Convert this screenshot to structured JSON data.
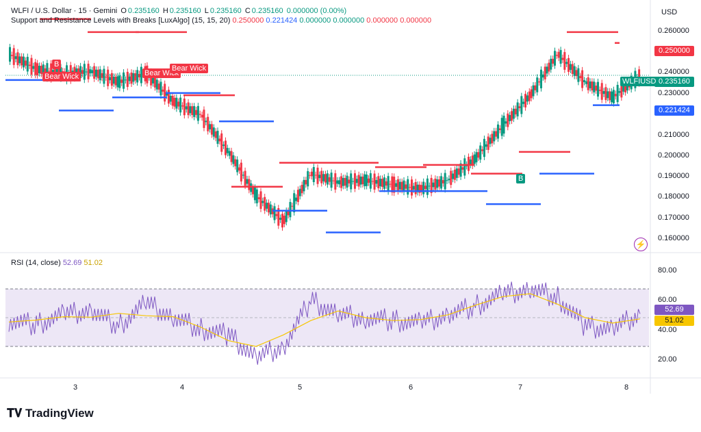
{
  "header": {
    "symbol": "WLFI / U.S. Dollar · 15 · Gemini",
    "open_label": "O",
    "open": "0.235160",
    "high_label": "H",
    "high": "0.235160",
    "low_label": "L",
    "low": "0.235160",
    "close_label": "C",
    "close": "0.235160",
    "change": "0.000000 (0.00%)"
  },
  "indicator": {
    "name": "Support and Resistance Levels with Breaks [LuxAlgo] (15, 15, 20)",
    "values": [
      "0.250000",
      "0.221424",
      "0.000000",
      "0.000000",
      "0.000000",
      "0.000000"
    ],
    "colors": [
      "#f23645",
      "#2962ff",
      "#089981",
      "#089981",
      "#f23645",
      "#f23645"
    ]
  },
  "rsi": {
    "name": "RSI (14, close)",
    "value": "52.69",
    "ma_value": "51.02",
    "line_color": "#7e57c2",
    "ma_color": "#f7c600"
  },
  "price_axis": {
    "currency": "USD",
    "labels": [
      "0.260000",
      "0.250000",
      "0.240000",
      "0.230000",
      "0.220000",
      "0.210000",
      "0.200000",
      "0.190000",
      "0.180000",
      "0.170000",
      "0.160000"
    ],
    "tags": [
      {
        "text": "0.250000",
        "color": "#f23645"
      },
      {
        "text": "0.235160",
        "color": "#089981"
      },
      {
        "text": "0.221424",
        "color": "#2962ff"
      }
    ],
    "symbol_tag": "WLFIUSD"
  },
  "rsi_axis": {
    "labels": [
      "80.00",
      "60.00",
      "40.00",
      "20.00"
    ]
  },
  "time_axis": {
    "labels": [
      "3",
      "4",
      "5",
      "6",
      "7",
      "8"
    ]
  },
  "markers": {
    "b1": "B",
    "bear1": "Bear Wick",
    "bear2": "Bear Wick",
    "bear3": "Bear Wick",
    "b2": "B"
  },
  "brand": {
    "name": "TradingView"
  },
  "colors": {
    "up": "#089981",
    "down": "#f23645",
    "resistance": "#f23645",
    "support": "#2962ff",
    "rsi_band": "#ede7f6"
  },
  "chart_data": {
    "type": "line",
    "title": "WLFI / U.S. Dollar · 15 · Gemini",
    "xlabel": "",
    "ylabel": "",
    "x": [
      "2.4",
      "2.7",
      "3.0",
      "3.3",
      "3.6",
      "3.9",
      "4.1",
      "4.3",
      "4.5",
      "4.7",
      "4.9",
      "5.2",
      "5.5",
      "5.8",
      "6.1",
      "6.4",
      "6.7",
      "6.9",
      "7.1",
      "7.3",
      "7.5",
      "7.7",
      "7.9",
      "8.1"
    ],
    "series": [
      {
        "name": "WLFIUSD",
        "values": [
          0.245,
          0.238,
          0.236,
          0.237,
          0.232,
          0.236,
          0.223,
          0.217,
          0.2,
          0.18,
          0.168,
          0.19,
          0.186,
          0.187,
          0.185,
          0.183,
          0.187,
          0.197,
          0.212,
          0.226,
          0.245,
          0.232,
          0.225,
          0.235
        ]
      },
      {
        "name": "RSI (14, close)",
        "values": [
          48,
          45,
          52,
          55,
          44,
          60,
          50,
          42,
          38,
          22,
          30,
          62,
          52,
          50,
          48,
          46,
          52,
          58,
          66,
          70,
          64,
          44,
          42,
          52.69
        ]
      }
    ],
    "ylim": [
      0.155,
      0.265
    ],
    "rsi_ylim": [
      10,
      90
    ],
    "resistance_levels": [
      0.261,
      0.255,
      0.255,
      0.226,
      0.184,
      0.195,
      0.195,
      0.193,
      0.194,
      0.19,
      0.2,
      0.255,
      0.25
    ],
    "support_levels": [
      0.233,
      0.219,
      0.225,
      0.227,
      0.214,
      0.173,
      0.163,
      0.182,
      0.182,
      0.176,
      0.19,
      0.221424
    ]
  }
}
